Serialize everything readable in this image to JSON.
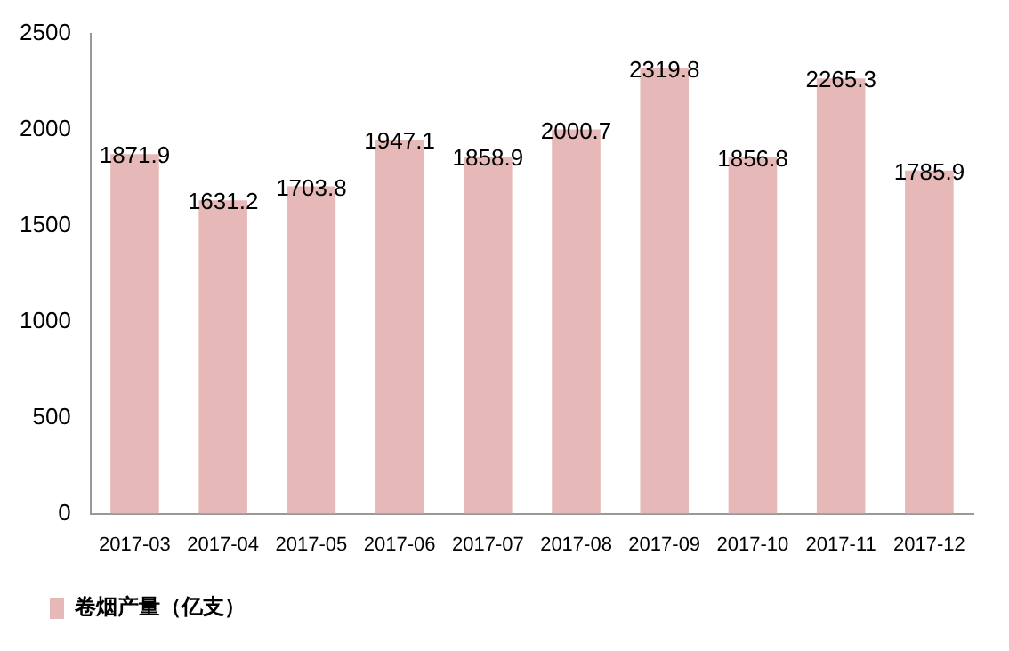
{
  "chart_data": {
    "type": "bar",
    "categories": [
      "2017-03",
      "2017-04",
      "2017-05",
      "2017-06",
      "2017-07",
      "2017-08",
      "2017-09",
      "2017-10",
      "2017-11",
      "2017-12"
    ],
    "series": [
      {
        "name": "卷烟产量（亿支）",
        "color": "#e6b9b8",
        "values": [
          1871.9,
          1631.2,
          1703.8,
          1947.1,
          1858.9,
          2000.7,
          2319.8,
          1856.8,
          2265.3,
          1785.9
        ]
      }
    ],
    "ylim": [
      0,
      2500
    ],
    "yticks": [
      0,
      500,
      1000,
      1500,
      2000,
      2500
    ],
    "grid": false,
    "legend": "bottom",
    "data_labels": true
  }
}
